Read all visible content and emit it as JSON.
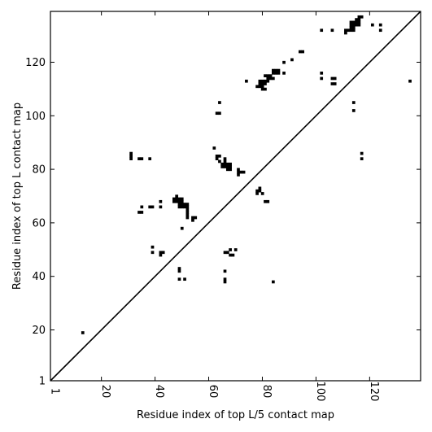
{
  "chart_data": {
    "type": "scatter",
    "subtype": "contact-map",
    "title": "",
    "xlabel": "Residue index of top L/5 contact map",
    "ylabel": "Residue index of top L contact map",
    "xlim": [
      1,
      139
    ],
    "ylim": [
      1,
      139
    ],
    "xticks": [
      1,
      20,
      40,
      60,
      80,
      100,
      120
    ],
    "yticks": [
      1,
      20,
      40,
      60,
      80,
      100,
      120
    ],
    "grid": false,
    "legend": "none",
    "diagonal": true,
    "marker_color": "#000000",
    "points": [
      [
        13,
        19
      ],
      [
        31,
        84
      ],
      [
        31,
        85
      ],
      [
        31,
        86
      ],
      [
        34,
        84
      ],
      [
        35,
        84
      ],
      [
        38,
        84
      ],
      [
        34,
        64
      ],
      [
        35,
        64
      ],
      [
        35,
        66
      ],
      [
        38,
        66
      ],
      [
        39,
        66
      ],
      [
        42,
        66
      ],
      [
        42,
        68
      ],
      [
        39,
        49
      ],
      [
        39,
        51
      ],
      [
        42,
        48
      ],
      [
        42,
        49
      ],
      [
        43,
        49
      ],
      [
        47,
        68
      ],
      [
        47,
        69
      ],
      [
        48,
        68
      ],
      [
        48,
        69
      ],
      [
        48,
        70
      ],
      [
        49,
        66
      ],
      [
        49,
        67
      ],
      [
        49,
        68
      ],
      [
        49,
        69
      ],
      [
        50,
        66
      ],
      [
        50,
        67
      ],
      [
        50,
        68
      ],
      [
        50,
        69
      ],
      [
        51,
        66
      ],
      [
        51,
        67
      ],
      [
        52,
        62
      ],
      [
        52,
        63
      ],
      [
        52,
        64
      ],
      [
        52,
        65
      ],
      [
        52,
        66
      ],
      [
        52,
        67
      ],
      [
        54,
        61
      ],
      [
        54,
        62
      ],
      [
        55,
        62
      ],
      [
        50,
        58
      ],
      [
        49,
        39
      ],
      [
        49,
        42
      ],
      [
        49,
        43
      ],
      [
        51,
        39
      ],
      [
        62,
        88
      ],
      [
        63,
        84
      ],
      [
        63,
        85
      ],
      [
        64,
        83
      ],
      [
        64,
        85
      ],
      [
        65,
        81
      ],
      [
        65,
        82
      ],
      [
        66,
        81
      ],
      [
        66,
        82
      ],
      [
        66,
        83
      ],
      [
        66,
        84
      ],
      [
        67,
        80
      ],
      [
        67,
        81
      ],
      [
        67,
        82
      ],
      [
        68,
        80
      ],
      [
        68,
        81
      ],
      [
        68,
        82
      ],
      [
        71,
        78
      ],
      [
        71,
        79
      ],
      [
        71,
        80
      ],
      [
        72,
        79
      ],
      [
        73,
        79
      ],
      [
        78,
        71
      ],
      [
        78,
        72
      ],
      [
        79,
        72
      ],
      [
        79,
        73
      ],
      [
        80,
        71
      ],
      [
        81,
        68
      ],
      [
        82,
        68
      ],
      [
        66,
        38
      ],
      [
        66,
        39
      ],
      [
        66,
        42
      ],
      [
        66,
        49
      ],
      [
        67,
        49
      ],
      [
        68,
        48
      ],
      [
        68,
        50
      ],
      [
        69,
        48
      ],
      [
        70,
        50
      ],
      [
        63,
        101
      ],
      [
        64,
        101
      ],
      [
        64,
        105
      ],
      [
        74,
        113
      ],
      [
        84,
        38
      ],
      [
        78,
        111
      ],
      [
        79,
        111
      ],
      [
        79,
        112
      ],
      [
        79,
        113
      ],
      [
        80,
        110
      ],
      [
        80,
        111
      ],
      [
        80,
        112
      ],
      [
        80,
        113
      ],
      [
        81,
        110
      ],
      [
        81,
        112
      ],
      [
        81,
        113
      ],
      [
        81,
        115
      ],
      [
        82,
        113
      ],
      [
        82,
        114
      ],
      [
        82,
        115
      ],
      [
        83,
        114
      ],
      [
        83,
        115
      ],
      [
        84,
        114
      ],
      [
        84,
        116
      ],
      [
        84,
        117
      ],
      [
        85,
        116
      ],
      [
        85,
        117
      ],
      [
        86,
        116
      ],
      [
        86,
        117
      ],
      [
        88,
        116
      ],
      [
        88,
        120
      ],
      [
        91,
        121
      ],
      [
        94,
        124
      ],
      [
        95,
        124
      ],
      [
        102,
        132
      ],
      [
        102,
        114
      ],
      [
        102,
        116
      ],
      [
        106,
        112
      ],
      [
        106,
        114
      ],
      [
        106,
        132
      ],
      [
        107,
        112
      ],
      [
        107,
        114
      ],
      [
        111,
        131
      ],
      [
        111,
        132
      ],
      [
        112,
        132
      ],
      [
        113,
        132
      ],
      [
        113,
        133
      ],
      [
        113,
        134
      ],
      [
        113,
        135
      ],
      [
        114,
        132
      ],
      [
        114,
        133
      ],
      [
        114,
        134
      ],
      [
        114,
        135
      ],
      [
        115,
        134
      ],
      [
        115,
        135
      ],
      [
        115,
        136
      ],
      [
        116,
        134
      ],
      [
        116,
        135
      ],
      [
        116,
        136
      ],
      [
        116,
        137
      ],
      [
        117,
        137
      ],
      [
        114,
        102
      ],
      [
        114,
        105
      ],
      [
        117,
        84
      ],
      [
        117,
        86
      ],
      [
        121,
        134
      ],
      [
        124,
        132
      ],
      [
        124,
        134
      ],
      [
        135,
        113
      ]
    ]
  }
}
